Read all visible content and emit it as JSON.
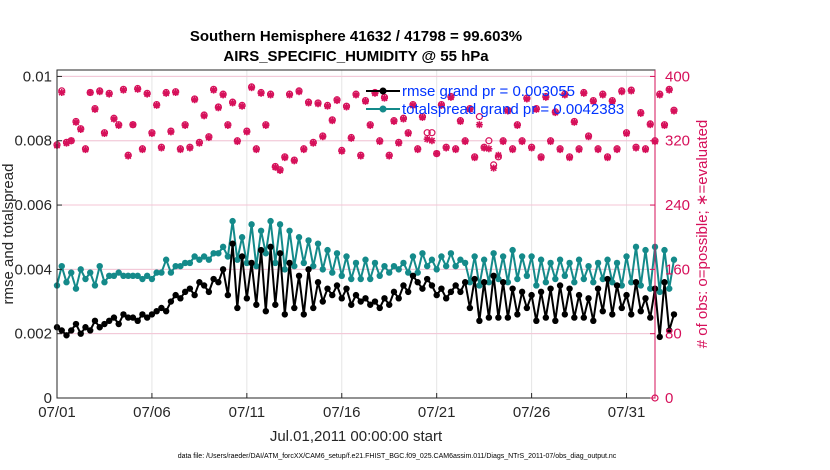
{
  "chart_data": {
    "type": "line",
    "title": "Southern Hemisphere 41632 / 41798 = 99.603%",
    "subtitle": "AIRS_SPECIFIC_HUMIDITY @ 55 hPa",
    "xlabel": "Jul.01,2011 00:00:00 start",
    "ylabel": "rmse and totalspread",
    "y2label": "# of obs: o=possible; ∗=evaluated",
    "footnote": "data file: /Users/raeder/DAI/ATM_forcXX/CAM6_setup/f.e21.FHIST_BGC.f09_025.CAM6assim.011/Diags_NTrS_2011-07/obs_diag_output.nc",
    "xlim": [
      0,
      31.5
    ],
    "ylim": [
      0,
      0.0102
    ],
    "y2lim": [
      0,
      408
    ],
    "xticks": [
      0,
      5,
      10,
      15,
      20,
      25,
      30
    ],
    "xtick_labels": [
      "07/01",
      "07/06",
      "07/11",
      "07/16",
      "07/21",
      "07/26",
      "07/31"
    ],
    "yticks": [
      0,
      0.002,
      0.004,
      0.006,
      0.008,
      0.01
    ],
    "ytick_labels": [
      "0",
      "0.002",
      "0.004",
      "0.006",
      "0.008",
      "0.01"
    ],
    "y2ticks": [
      0,
      80,
      160,
      240,
      320,
      400
    ],
    "y2tick_labels": [
      "0",
      "80",
      "160",
      "240",
      "320",
      "400"
    ],
    "grid": true,
    "legend_position": "top-right",
    "time_step_days": 0.25,
    "series": [
      {
        "name": "rmse grand pr = 0.003055",
        "color": "#000000",
        "marker": "filled-circle",
        "values": [
          0.0022,
          0.0021,
          0.00195,
          0.0021,
          0.0023,
          0.002,
          0.0022,
          0.0021,
          0.0024,
          0.0022,
          0.0023,
          0.0024,
          0.0025,
          0.0023,
          0.0026,
          0.0025,
          0.0025,
          0.0024,
          0.0026,
          0.0025,
          0.0026,
          0.0027,
          0.0028,
          0.0027,
          0.003,
          0.0032,
          0.0031,
          0.0033,
          0.0034,
          0.0032,
          0.0036,
          0.0035,
          0.0033,
          0.0037,
          0.0036,
          0.004,
          0.0032,
          0.0048,
          0.0028,
          0.0044,
          0.0031,
          0.0042,
          0.0029,
          0.0046,
          0.0027,
          0.0047,
          0.0029,
          0.0045,
          0.0026,
          0.0042,
          0.0028,
          0.0038,
          0.0026,
          0.004,
          0.0028,
          0.0036,
          0.003,
          0.0034,
          0.0032,
          0.0035,
          0.0031,
          0.0034,
          0.0029,
          0.0032,
          0.003,
          0.0031,
          0.0029,
          0.003,
          0.0028,
          0.0031,
          0.0029,
          0.0033,
          0.0031,
          0.0035,
          0.0033,
          0.0038,
          0.0036,
          0.0034,
          0.0037,
          0.0035,
          0.0032,
          0.0034,
          0.0031,
          0.0033,
          0.0035,
          0.0033,
          0.0036,
          0.0028,
          0.0037,
          0.0024,
          0.0036,
          0.0025,
          0.0038,
          0.0025,
          0.0036,
          0.0025,
          0.0034,
          0.0026,
          0.0033,
          0.0028,
          0.0032,
          0.0024,
          0.0033,
          0.0025,
          0.0034,
          0.0024,
          0.0035,
          0.0026,
          0.0034,
          0.0025,
          0.0032,
          0.0025,
          0.0031,
          0.0024,
          0.0034,
          0.0027,
          0.0037,
          0.0026,
          0.0035,
          0.0028,
          0.0032,
          0.0026,
          0.0036,
          0.0027,
          0.0031,
          0.0025,
          0.0034,
          0.0019,
          0.0036,
          0.0021,
          0.0026
        ]
      },
      {
        "name": "totalspread grand pr = 0.0042383",
        "color": "#148a8a",
        "marker": "filled-circle",
        "values": [
          0.0035,
          0.0041,
          0.0036,
          0.0039,
          0.0034,
          0.004,
          0.0037,
          0.0039,
          0.0035,
          0.0041,
          0.0036,
          0.0038,
          0.0038,
          0.0039,
          0.0038,
          0.0038,
          0.0038,
          0.0038,
          0.0037,
          0.0038,
          0.0037,
          0.0039,
          0.0039,
          0.0043,
          0.0039,
          0.0041,
          0.0041,
          0.0042,
          0.0042,
          0.0044,
          0.0043,
          0.0044,
          0.0043,
          0.0045,
          0.0045,
          0.0047,
          0.0044,
          0.0055,
          0.0043,
          0.005,
          0.0042,
          0.0054,
          0.0041,
          0.0052,
          0.0045,
          0.0055,
          0.0042,
          0.0054,
          0.004,
          0.0052,
          0.0041,
          0.005,
          0.0042,
          0.0049,
          0.0041,
          0.0048,
          0.004,
          0.0046,
          0.0039,
          0.0045,
          0.0038,
          0.0044,
          0.0037,
          0.0042,
          0.0037,
          0.0043,
          0.0037,
          0.0042,
          0.0038,
          0.0041,
          0.0039,
          0.0041,
          0.004,
          0.0042,
          0.0039,
          0.0044,
          0.0039,
          0.0045,
          0.0041,
          0.0043,
          0.004,
          0.0044,
          0.0041,
          0.0045,
          0.0041,
          0.0043,
          0.0042,
          0.0036,
          0.0044,
          0.0035,
          0.0043,
          0.0036,
          0.0045,
          0.0037,
          0.0044,
          0.0036,
          0.0046,
          0.0037,
          0.0044,
          0.0038,
          0.0044,
          0.0035,
          0.0043,
          0.0036,
          0.0042,
          0.0037,
          0.0043,
          0.0038,
          0.0042,
          0.0036,
          0.0043,
          0.0037,
          0.0041,
          0.0036,
          0.0042,
          0.0037,
          0.0043,
          0.0036,
          0.0042,
          0.0035,
          0.0044,
          0.0036,
          0.0047,
          0.0035,
          0.0046,
          0.0034,
          0.0047,
          0.0033,
          0.0046,
          0.0034,
          0.0043
        ]
      },
      {
        "name": "# of obs possible",
        "axis": "right",
        "color": "#d6105a",
        "marker": "open-circle",
        "values": [
          315,
          382,
          318,
          320,
          344,
          335,
          310,
          380,
          360,
          382,
          330,
          379,
          348,
          340,
          384,
          302,
          340,
          385,
          310,
          379,
          330,
          365,
          312,
          380,
          332,
          381,
          310,
          340,
          312,
          372,
          318,
          352,
          325,
          384,
          362,
          378,
          340,
          368,
          320,
          364,
          332,
          387,
          310,
          380,
          340,
          378,
          288,
          284,
          300,
          378,
          296,
          382,
          310,
          368,
          318,
          367,
          326,
          364,
          346,
          371,
          308,
          363,
          324,
          378,
          302,
          370,
          340,
          380,
          320,
          374,
          302,
          345,
          318,
          348,
          330,
          365,
          310,
          350,
          330,
          330,
          304,
          365,
          312,
          375,
          310,
          345,
          320,
          360,
          300,
          350,
          312,
          320,
          290,
          300,
          320,
          358,
          310,
          340,
          320,
          373,
          312,
          360,
          300,
          375,
          320,
          356,
          310,
          378,
          300,
          344,
          310,
          380,
          326,
          370,
          310,
          378,
          300,
          370,
          310,
          382,
          330,
          383,
          312,
          355,
          310,
          341,
          320,
          378,
          340,
          384,
          358
        ]
      },
      {
        "name": "# of obs evaluated",
        "axis": "right",
        "color": "#d6105a",
        "marker": "asterisk",
        "values": [
          314,
          380,
          317,
          320,
          343,
          334,
          309,
          380,
          359,
          381,
          329,
          378,
          347,
          339,
          383,
          301,
          340,
          384,
          309,
          378,
          329,
          364,
          311,
          379,
          331,
          380,
          309,
          339,
          311,
          371,
          317,
          351,
          324,
          383,
          361,
          377,
          339,
          367,
          319,
          363,
          331,
          386,
          309,
          379,
          339,
          377,
          287,
          283,
          299,
          377,
          295,
          381,
          309,
          367,
          317,
          366,
          325,
          363,
          345,
          370,
          307,
          362,
          323,
          377,
          301,
          369,
          339,
          379,
          319,
          373,
          301,
          344,
          317,
          347,
          329,
          364,
          309,
          349,
          322,
          320,
          304,
          364,
          311,
          374,
          309,
          344,
          319,
          359,
          299,
          340,
          311,
          310,
          286,
          302,
          319,
          357,
          309,
          339,
          319,
          372,
          311,
          359,
          299,
          374,
          319,
          355,
          309,
          377,
          299,
          343,
          309,
          379,
          325,
          369,
          309,
          377,
          299,
          369,
          309,
          381,
          329,
          382,
          311,
          354,
          309,
          340,
          319,
          377,
          339,
          383,
          357
        ]
      }
    ]
  }
}
